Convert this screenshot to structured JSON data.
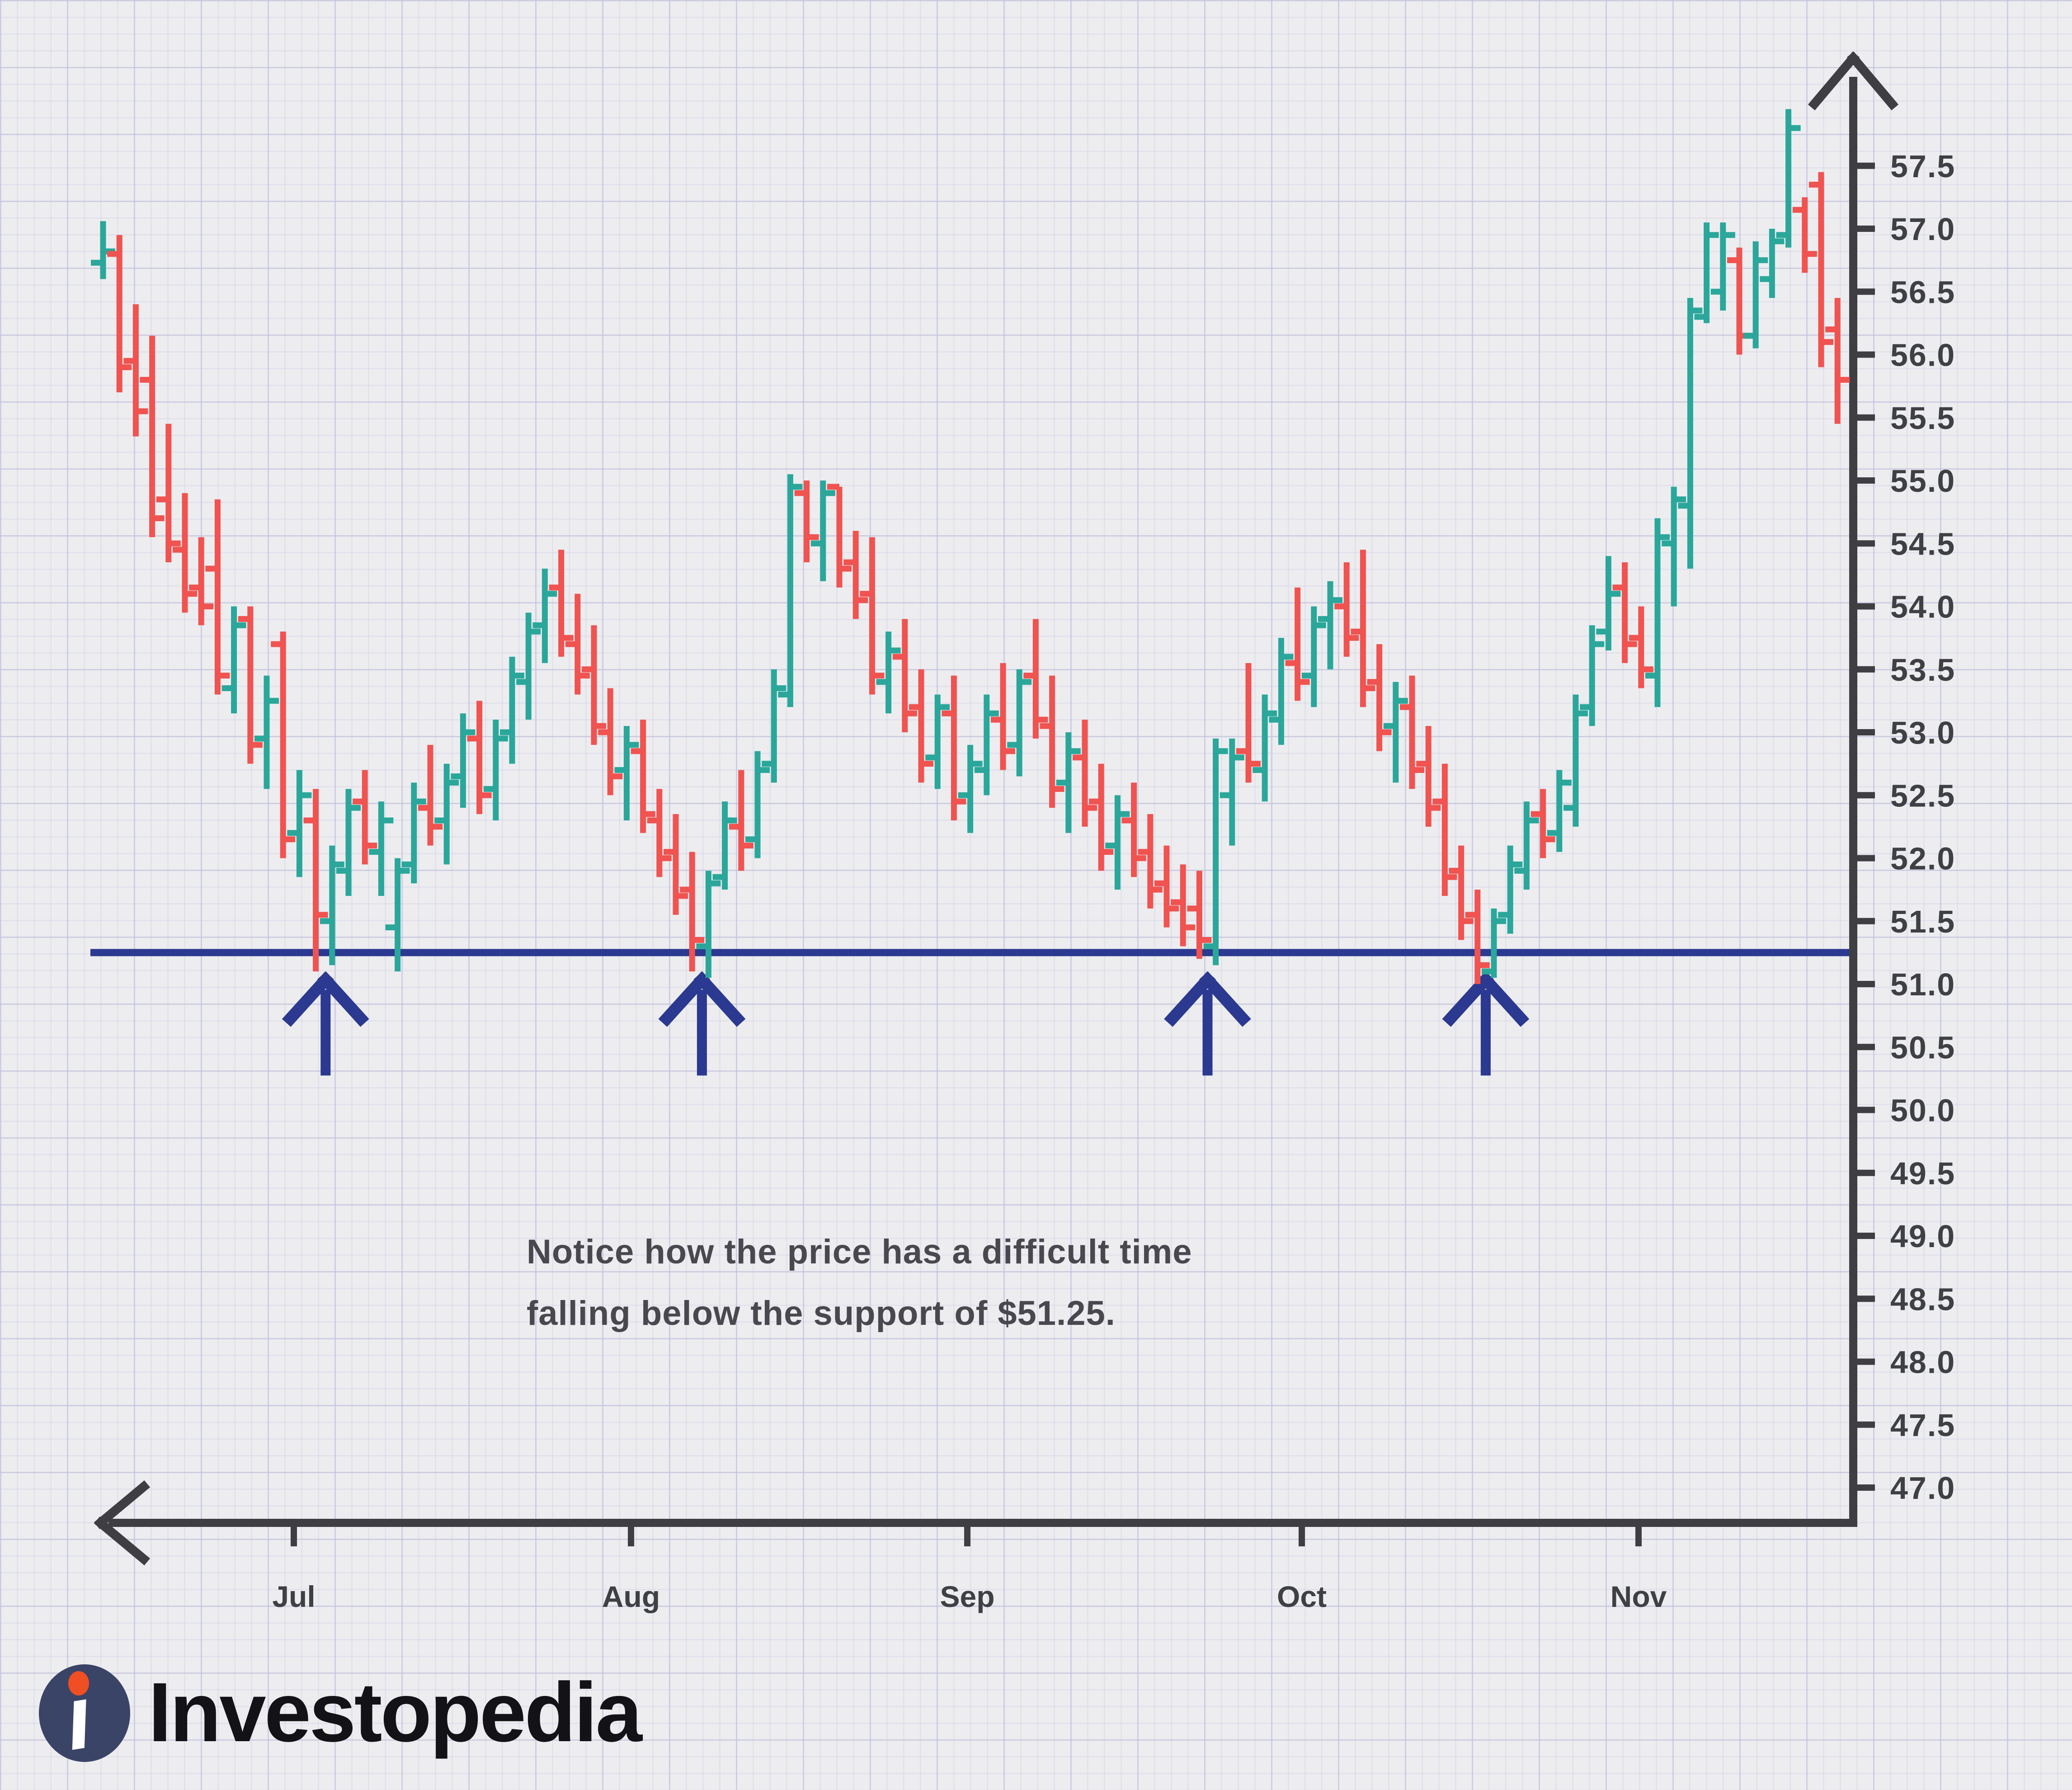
{
  "branding": {
    "logo_text": "Investopedia",
    "logo_circle_color": "#3a4467",
    "logo_dot_color": "#f04e23",
    "logo_i_color": "#ffffff"
  },
  "annotation": {
    "line1": "Notice how the price has a difficult time",
    "line2": "falling below the support of $51.25."
  },
  "chart_data": {
    "type": "bar",
    "subtype": "ohlc-daily-price-bars",
    "title": "",
    "xlabel": "",
    "ylabel": "",
    "x_tick_labels": [
      "Jul",
      "Aug",
      "Sep",
      "Oct",
      "Nov"
    ],
    "y_tick_labels": [
      "57.5",
      "57.0",
      "56.5",
      "56.0",
      "55.5",
      "55.0",
      "54.5",
      "54.0",
      "53.5",
      "53.0",
      "52.5",
      "52.0",
      "51.5",
      "51.0",
      "50.5",
      "50.0",
      "49.5",
      "49.0",
      "48.5",
      "48.0",
      "47.5",
      "47.0"
    ],
    "y_axis": {
      "min": 47.0,
      "max": 57.9,
      "tick_step": 0.5
    },
    "grid": "graph-paper",
    "legend": "none",
    "support_level": 51.25,
    "support_label": "$51.25",
    "support_touch_arrows_bar_index": [
      13.6,
      36.6,
      67.5,
      84.5
    ],
    "colors": {
      "up_bar": "#2aa79a",
      "down_bar": "#f05350",
      "support_line": "#2b3990",
      "arrow": "#2b3990",
      "axis": "#3e3e43",
      "tick_text": "#3e4044"
    },
    "bars_format": [
      "open",
      "high",
      "low",
      "close"
    ],
    "bars": [
      [
        56.73,
        57.06,
        56.6,
        56.82
      ],
      [
        56.8,
        56.95,
        55.7,
        55.9
      ],
      [
        55.95,
        56.4,
        55.35,
        55.55
      ],
      [
        55.8,
        56.15,
        54.55,
        54.7
      ],
      [
        54.85,
        55.45,
        54.35,
        54.5
      ],
      [
        54.45,
        54.9,
        53.95,
        54.1
      ],
      [
        54.15,
        54.55,
        53.85,
        54.0
      ],
      [
        54.3,
        54.85,
        53.3,
        53.45
      ],
      [
        53.35,
        54.0,
        53.15,
        53.85
      ],
      [
        53.9,
        54.0,
        52.75,
        52.9
      ],
      [
        52.95,
        53.45,
        52.55,
        53.25
      ],
      [
        53.7,
        53.8,
        52.0,
        52.15
      ],
      [
        52.2,
        52.7,
        51.85,
        52.5
      ],
      [
        52.3,
        52.55,
        51.1,
        51.55
      ],
      [
        51.5,
        52.1,
        51.15,
        51.95
      ],
      [
        51.9,
        52.55,
        51.7,
        52.4
      ],
      [
        52.45,
        52.7,
        51.95,
        52.1
      ],
      [
        52.05,
        52.45,
        51.7,
        52.3
      ],
      [
        51.45,
        52.0,
        51.1,
        51.9
      ],
      [
        51.95,
        52.6,
        51.8,
        52.45
      ],
      [
        52.4,
        52.9,
        52.1,
        52.25
      ],
      [
        52.3,
        52.75,
        51.95,
        52.6
      ],
      [
        52.65,
        53.15,
        52.4,
        53.0
      ],
      [
        52.95,
        53.25,
        52.35,
        52.5
      ],
      [
        52.55,
        53.1,
        52.3,
        52.95
      ],
      [
        53.0,
        53.6,
        52.75,
        53.45
      ],
      [
        53.4,
        53.95,
        53.1,
        53.8
      ],
      [
        53.85,
        54.3,
        53.55,
        54.1
      ],
      [
        54.15,
        54.45,
        53.6,
        53.75
      ],
      [
        53.7,
        54.1,
        53.3,
        53.45
      ],
      [
        53.5,
        53.85,
        52.9,
        53.05
      ],
      [
        53.0,
        53.35,
        52.5,
        52.65
      ],
      [
        52.7,
        53.05,
        52.3,
        52.9
      ],
      [
        52.85,
        53.1,
        52.2,
        52.35
      ],
      [
        52.3,
        52.55,
        51.85,
        52.0
      ],
      [
        52.05,
        52.35,
        51.55,
        51.7
      ],
      [
        51.75,
        52.05,
        51.1,
        51.35
      ],
      [
        51.3,
        51.9,
        51.05,
        51.8
      ],
      [
        51.85,
        52.45,
        51.75,
        52.3
      ],
      [
        52.25,
        52.7,
        51.9,
        52.1
      ],
      [
        52.15,
        52.85,
        52.0,
        52.7
      ],
      [
        52.75,
        53.5,
        52.6,
        53.35
      ],
      [
        53.3,
        55.05,
        53.2,
        54.95
      ],
      [
        54.9,
        55.0,
        54.35,
        54.55
      ],
      [
        54.5,
        55.0,
        54.2,
        54.9
      ],
      [
        54.95,
        54.95,
        54.15,
        54.3
      ],
      [
        54.35,
        54.6,
        53.9,
        54.05
      ],
      [
        54.1,
        54.55,
        53.3,
        53.45
      ],
      [
        53.4,
        53.8,
        53.15,
        53.65
      ],
      [
        53.6,
        53.9,
        53.0,
        53.15
      ],
      [
        53.2,
        53.5,
        52.6,
        52.75
      ],
      [
        52.8,
        53.3,
        52.55,
        53.2
      ],
      [
        53.15,
        53.45,
        52.3,
        52.45
      ],
      [
        52.5,
        52.9,
        52.2,
        52.75
      ],
      [
        52.7,
        53.3,
        52.5,
        53.15
      ],
      [
        53.1,
        53.55,
        52.7,
        52.85
      ],
      [
        52.9,
        53.5,
        52.65,
        53.4
      ],
      [
        53.45,
        53.9,
        52.95,
        53.1
      ],
      [
        53.05,
        53.45,
        52.4,
        52.55
      ],
      [
        52.6,
        53.0,
        52.2,
        52.85
      ],
      [
        52.8,
        53.1,
        52.25,
        52.4
      ],
      [
        52.45,
        52.75,
        51.9,
        52.05
      ],
      [
        52.1,
        52.5,
        51.75,
        52.35
      ],
      [
        52.3,
        52.6,
        51.85,
        52.0
      ],
      [
        52.05,
        52.35,
        51.6,
        51.75
      ],
      [
        51.8,
        52.1,
        51.45,
        51.6
      ],
      [
        51.65,
        51.95,
        51.3,
        51.45
      ],
      [
        51.6,
        51.9,
        51.2,
        51.35
      ],
      [
        51.3,
        52.95,
        51.15,
        52.85
      ],
      [
        52.5,
        52.95,
        52.1,
        52.8
      ],
      [
        52.85,
        53.55,
        52.6,
        52.75
      ],
      [
        52.7,
        53.3,
        52.45,
        53.15
      ],
      [
        53.1,
        53.75,
        52.9,
        53.6
      ],
      [
        53.55,
        54.15,
        53.25,
        53.4
      ],
      [
        53.45,
        54.0,
        53.2,
        53.85
      ],
      [
        53.9,
        54.2,
        53.5,
        54.05
      ],
      [
        54.0,
        54.35,
        53.6,
        53.75
      ],
      [
        53.8,
        54.45,
        53.2,
        53.35
      ],
      [
        53.4,
        53.7,
        52.85,
        53.0
      ],
      [
        53.05,
        53.4,
        52.6,
        53.25
      ],
      [
        53.2,
        53.45,
        52.55,
        52.7
      ],
      [
        52.75,
        53.05,
        52.25,
        52.4
      ],
      [
        52.45,
        52.75,
        51.7,
        51.85
      ],
      [
        51.9,
        52.1,
        51.35,
        51.5
      ],
      [
        51.55,
        51.75,
        51.0,
        51.15
      ],
      [
        51.1,
        51.6,
        51.05,
        51.5
      ],
      [
        51.55,
        52.1,
        51.4,
        51.95
      ],
      [
        51.9,
        52.45,
        51.75,
        52.3
      ],
      [
        52.35,
        52.55,
        52.0,
        52.15
      ],
      [
        52.2,
        52.7,
        52.05,
        52.6
      ],
      [
        52.4,
        53.3,
        52.25,
        53.15
      ],
      [
        53.2,
        53.85,
        53.05,
        53.7
      ],
      [
        53.8,
        54.4,
        53.65,
        54.1
      ],
      [
        54.15,
        54.35,
        53.55,
        53.7
      ],
      [
        53.75,
        54.0,
        53.35,
        53.5
      ],
      [
        53.45,
        54.7,
        53.2,
        54.55
      ],
      [
        54.5,
        54.95,
        54.0,
        54.85
      ],
      [
        54.8,
        56.45,
        54.3,
        56.35
      ],
      [
        56.3,
        57.05,
        56.25,
        56.95
      ],
      [
        56.5,
        57.05,
        56.35,
        56.95
      ],
      [
        56.75,
        56.85,
        56.0,
        56.15
      ],
      [
        56.15,
        56.9,
        56.05,
        56.75
      ],
      [
        56.6,
        57.0,
        56.45,
        56.9
      ],
      [
        56.95,
        57.95,
        56.85,
        57.8
      ],
      [
        57.15,
        57.25,
        56.65,
        56.8
      ],
      [
        57.35,
        57.45,
        55.9,
        56.1
      ],
      [
        56.2,
        56.45,
        55.45,
        55.8
      ]
    ]
  }
}
